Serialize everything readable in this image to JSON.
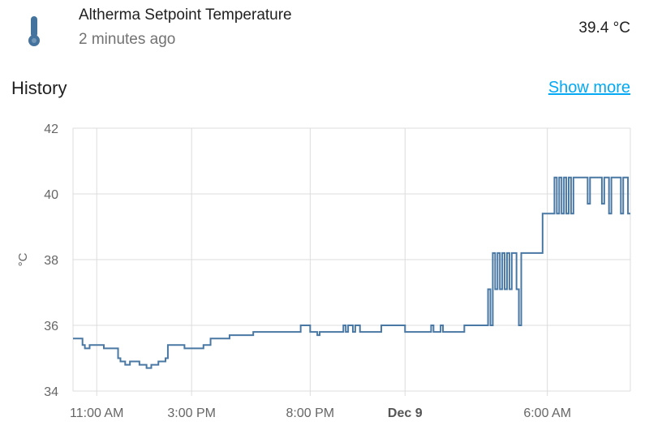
{
  "entity": {
    "name": "Altherma Setpoint Temperature",
    "last_changed": "2 minutes ago",
    "state": "39.4 °C",
    "icon": "thermometer-icon"
  },
  "history": {
    "title": "History",
    "show_more_label": "Show more"
  },
  "colors": {
    "line": "#4a78a4",
    "grid": "#dcdcdc",
    "link": "#03a9f4"
  },
  "chart_data": {
    "type": "line",
    "ylabel": "°C",
    "ylim": [
      34,
      42
    ],
    "yticks": [
      34,
      36,
      38,
      40,
      42
    ],
    "x_unit": "hours from 10:00 AM Dec 8",
    "xlim": [
      0,
      23.5
    ],
    "xticks": [
      {
        "x": 1,
        "label": "11:00 AM",
        "bold": false
      },
      {
        "x": 5,
        "label": "3:00 PM",
        "bold": false
      },
      {
        "x": 10,
        "label": "8:00 PM",
        "bold": false
      },
      {
        "x": 14,
        "label": "Dec 9",
        "bold": true
      },
      {
        "x": 20,
        "label": "6:00 AM",
        "bold": false
      }
    ],
    "grid": true,
    "series": [
      {
        "name": "Altherma Setpoint Temperature",
        "points": [
          [
            0.0,
            35.6
          ],
          [
            0.4,
            35.4
          ],
          [
            0.5,
            35.3
          ],
          [
            0.7,
            35.4
          ],
          [
            1.1,
            35.4
          ],
          [
            1.3,
            35.3
          ],
          [
            1.6,
            35.3
          ],
          [
            1.9,
            35.0
          ],
          [
            2.0,
            34.9
          ],
          [
            2.2,
            34.8
          ],
          [
            2.4,
            34.9
          ],
          [
            2.8,
            34.8
          ],
          [
            3.1,
            34.7
          ],
          [
            3.3,
            34.8
          ],
          [
            3.6,
            34.9
          ],
          [
            3.9,
            35.0
          ],
          [
            4.0,
            35.4
          ],
          [
            4.6,
            35.4
          ],
          [
            4.7,
            35.3
          ],
          [
            5.3,
            35.3
          ],
          [
            5.5,
            35.4
          ],
          [
            5.8,
            35.6
          ],
          [
            6.2,
            35.6
          ],
          [
            6.6,
            35.7
          ],
          [
            7.3,
            35.7
          ],
          [
            7.6,
            35.8
          ],
          [
            9.5,
            35.8
          ],
          [
            9.6,
            36.0
          ],
          [
            9.9,
            36.0
          ],
          [
            10.0,
            35.8
          ],
          [
            10.2,
            35.8
          ],
          [
            10.3,
            35.7
          ],
          [
            10.4,
            35.8
          ],
          [
            11.3,
            35.8
          ],
          [
            11.4,
            36.0
          ],
          [
            11.5,
            35.8
          ],
          [
            11.6,
            36.0
          ],
          [
            11.8,
            35.8
          ],
          [
            11.9,
            36.0
          ],
          [
            12.1,
            35.8
          ],
          [
            12.9,
            35.8
          ],
          [
            13.0,
            36.0
          ],
          [
            13.9,
            36.0
          ],
          [
            14.0,
            35.8
          ],
          [
            15.0,
            35.8
          ],
          [
            15.1,
            36.0
          ],
          [
            15.2,
            35.8
          ],
          [
            15.4,
            35.8
          ],
          [
            15.5,
            36.0
          ],
          [
            15.6,
            35.8
          ],
          [
            16.4,
            35.8
          ],
          [
            16.5,
            36.0
          ],
          [
            17.4,
            36.0
          ],
          [
            17.5,
            37.1
          ],
          [
            17.6,
            36.0
          ],
          [
            17.7,
            38.2
          ],
          [
            17.8,
            37.1
          ],
          [
            17.9,
            38.2
          ],
          [
            18.0,
            37.1
          ],
          [
            18.1,
            38.2
          ],
          [
            18.2,
            37.1
          ],
          [
            18.3,
            38.2
          ],
          [
            18.4,
            37.1
          ],
          [
            18.5,
            38.2
          ],
          [
            18.6,
            38.2
          ],
          [
            18.7,
            37.1
          ],
          [
            18.8,
            36.0
          ],
          [
            18.9,
            38.2
          ],
          [
            19.7,
            38.2
          ],
          [
            19.8,
            39.4
          ],
          [
            20.2,
            39.4
          ],
          [
            20.3,
            40.5
          ],
          [
            20.4,
            39.4
          ],
          [
            20.5,
            40.5
          ],
          [
            20.6,
            39.4
          ],
          [
            20.7,
            40.5
          ],
          [
            20.8,
            39.4
          ],
          [
            20.9,
            40.5
          ],
          [
            21.0,
            39.4
          ],
          [
            21.1,
            40.5
          ],
          [
            21.6,
            40.5
          ],
          [
            21.7,
            39.7
          ],
          [
            21.8,
            40.5
          ],
          [
            22.2,
            40.5
          ],
          [
            22.3,
            39.7
          ],
          [
            22.4,
            40.5
          ],
          [
            22.5,
            40.5
          ],
          [
            22.6,
            39.4
          ],
          [
            22.7,
            40.5
          ],
          [
            23.0,
            40.5
          ],
          [
            23.1,
            39.4
          ],
          [
            23.2,
            40.5
          ],
          [
            23.3,
            40.5
          ],
          [
            23.4,
            39.4
          ],
          [
            23.5,
            39.4
          ]
        ]
      }
    ]
  }
}
